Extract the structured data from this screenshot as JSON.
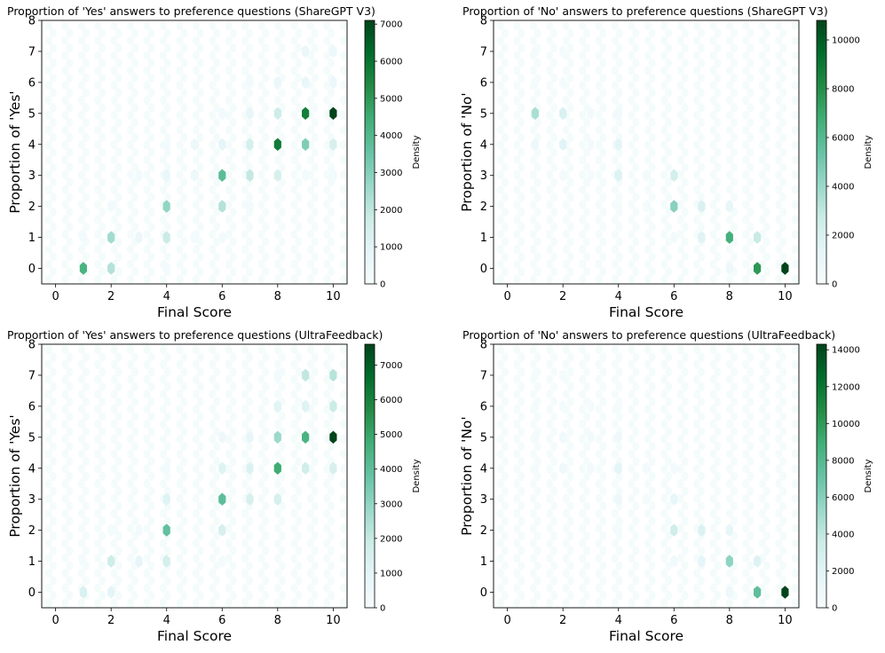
{
  "figure": {
    "description_free": true
  },
  "chart_data": [
    {
      "type": "hexbin",
      "title": "Proportion of 'Yes' answers to preference questions (ShareGPT V3)",
      "xlabel": "Final Score",
      "ylabel": "Proportion of 'Yes'",
      "xlim": [
        -0.5,
        10.5
      ],
      "ylim": [
        -0.5,
        8
      ],
      "xticks": [
        "0",
        "2",
        "4",
        "6",
        "8",
        "10"
      ],
      "yticks": [
        "0",
        "1",
        "2",
        "3",
        "4",
        "5",
        "6",
        "7",
        "8"
      ],
      "colorbar": {
        "label": "Density",
        "max": 7100,
        "ticks": [
          "0",
          "1000",
          "2000",
          "3000",
          "4000",
          "5000",
          "6000",
          "7000"
        ]
      },
      "points": [
        {
          "x": 1,
          "y": 0,
          "v": 4200
        },
        {
          "x": 2,
          "y": 0,
          "v": 2200
        },
        {
          "x": 4,
          "y": 0,
          "v": 300
        },
        {
          "x": 1,
          "y": 1,
          "v": 300
        },
        {
          "x": 2,
          "y": 1,
          "v": 2500
        },
        {
          "x": 3,
          "y": 1,
          "v": 600
        },
        {
          "x": 4,
          "y": 1,
          "v": 1800
        },
        {
          "x": 5,
          "y": 1,
          "v": 300
        },
        {
          "x": 6,
          "y": 1,
          "v": 200
        },
        {
          "x": 2,
          "y": 2,
          "v": 300
        },
        {
          "x": 4,
          "y": 2,
          "v": 2800
        },
        {
          "x": 6,
          "y": 2,
          "v": 2200
        },
        {
          "x": 7,
          "y": 2,
          "v": 300
        },
        {
          "x": 3,
          "y": 3,
          "v": 300
        },
        {
          "x": 4,
          "y": 3,
          "v": 700
        },
        {
          "x": 5,
          "y": 3,
          "v": 500
        },
        {
          "x": 6,
          "y": 3,
          "v": 3800
        },
        {
          "x": 7,
          "y": 3,
          "v": 1900
        },
        {
          "x": 8,
          "y": 3,
          "v": 1400
        },
        {
          "x": 9,
          "y": 3,
          "v": 300
        },
        {
          "x": 10,
          "y": 3,
          "v": 300
        },
        {
          "x": 4,
          "y": 4,
          "v": 300
        },
        {
          "x": 5,
          "y": 4,
          "v": 500
        },
        {
          "x": 6,
          "y": 4,
          "v": 900
        },
        {
          "x": 7,
          "y": 4,
          "v": 1500
        },
        {
          "x": 8,
          "y": 4,
          "v": 5800
        },
        {
          "x": 9,
          "y": 4,
          "v": 3100
        },
        {
          "x": 10,
          "y": 4,
          "v": 1400
        },
        {
          "x": 6,
          "y": 5,
          "v": 300
        },
        {
          "x": 7,
          "y": 5,
          "v": 800
        },
        {
          "x": 8,
          "y": 5,
          "v": 1700
        },
        {
          "x": 9,
          "y": 5,
          "v": 5700
        },
        {
          "x": 10,
          "y": 5,
          "v": 7100
        },
        {
          "x": 7,
          "y": 6,
          "v": 300
        },
        {
          "x": 8,
          "y": 6,
          "v": 600
        },
        {
          "x": 9,
          "y": 6,
          "v": 700
        },
        {
          "x": 10,
          "y": 6,
          "v": 600
        },
        {
          "x": 9,
          "y": 7,
          "v": 600
        },
        {
          "x": 10,
          "y": 7,
          "v": 500
        }
      ]
    },
    {
      "type": "hexbin",
      "title": "Proportion of 'No' answers to preference questions (ShareGPT V3)",
      "xlabel": "Final Score",
      "ylabel": "Proportion of 'No'",
      "xlim": [
        -0.5,
        10.5
      ],
      "ylim": [
        -0.5,
        8
      ],
      "xticks": [
        "0",
        "2",
        "4",
        "6",
        "8",
        "10"
      ],
      "yticks": [
        "0",
        "1",
        "2",
        "3",
        "4",
        "5",
        "6",
        "7",
        "8"
      ],
      "colorbar": {
        "label": "Density",
        "max": 10800,
        "ticks": [
          "0",
          "2000",
          "4000",
          "6000",
          "8000",
          "10000"
        ]
      },
      "points": [
        {
          "x": 1,
          "y": 7,
          "v": 200
        },
        {
          "x": 2,
          "y": 7,
          "v": 200
        },
        {
          "x": 1,
          "y": 6,
          "v": 200
        },
        {
          "x": 2,
          "y": 6,
          "v": 200
        },
        {
          "x": 1,
          "y": 5,
          "v": 3600
        },
        {
          "x": 2,
          "y": 5,
          "v": 2000
        },
        {
          "x": 3,
          "y": 5,
          "v": 300
        },
        {
          "x": 4,
          "y": 5,
          "v": 500
        },
        {
          "x": 1,
          "y": 4,
          "v": 700
        },
        {
          "x": 2,
          "y": 4,
          "v": 1500
        },
        {
          "x": 3,
          "y": 4,
          "v": 300
        },
        {
          "x": 4,
          "y": 4,
          "v": 1400
        },
        {
          "x": 2,
          "y": 3,
          "v": 300
        },
        {
          "x": 3,
          "y": 3,
          "v": 200
        },
        {
          "x": 4,
          "y": 3,
          "v": 1800
        },
        {
          "x": 5,
          "y": 3,
          "v": 300
        },
        {
          "x": 6,
          "y": 3,
          "v": 2300
        },
        {
          "x": 4,
          "y": 2,
          "v": 200
        },
        {
          "x": 5,
          "y": 2,
          "v": 200
        },
        {
          "x": 6,
          "y": 2,
          "v": 4500
        },
        {
          "x": 7,
          "y": 2,
          "v": 1900
        },
        {
          "x": 8,
          "y": 2,
          "v": 1100
        },
        {
          "x": 6,
          "y": 1,
          "v": 300
        },
        {
          "x": 7,
          "y": 1,
          "v": 1600
        },
        {
          "x": 8,
          "y": 1,
          "v": 6600
        },
        {
          "x": 9,
          "y": 1,
          "v": 2800
        },
        {
          "x": 8,
          "y": 0,
          "v": 700
        },
        {
          "x": 9,
          "y": 0,
          "v": 7600
        },
        {
          "x": 10,
          "y": 0,
          "v": 10800
        }
      ]
    },
    {
      "type": "hexbin",
      "title": "Proportion of 'Yes' answers to preference questions (UltraFeedback)",
      "xlabel": "Final Score",
      "ylabel": "Proportion of 'Yes'",
      "xlim": [
        -0.5,
        10.5
      ],
      "ylim": [
        -0.5,
        8
      ],
      "xticks": [
        "0",
        "2",
        "4",
        "6",
        "8",
        "10"
      ],
      "yticks": [
        "0",
        "1",
        "2",
        "3",
        "4",
        "5",
        "6",
        "7",
        "8"
      ],
      "colorbar": {
        "label": "Density",
        "max": 7600,
        "ticks": [
          "0",
          "1000",
          "2000",
          "3000",
          "4000",
          "5000",
          "6000",
          "7000"
        ]
      },
      "points": [
        {
          "x": 1,
          "y": 0,
          "v": 1400
        },
        {
          "x": 2,
          "y": 0,
          "v": 1000
        },
        {
          "x": 1,
          "y": 1,
          "v": 200
        },
        {
          "x": 2,
          "y": 1,
          "v": 1800
        },
        {
          "x": 3,
          "y": 1,
          "v": 900
        },
        {
          "x": 4,
          "y": 1,
          "v": 1600
        },
        {
          "x": 6,
          "y": 1,
          "v": 200
        },
        {
          "x": 2,
          "y": 2,
          "v": 200
        },
        {
          "x": 3,
          "y": 2,
          "v": 300
        },
        {
          "x": 4,
          "y": 2,
          "v": 3900
        },
        {
          "x": 6,
          "y": 2,
          "v": 1500
        },
        {
          "x": 4,
          "y": 3,
          "v": 1200
        },
        {
          "x": 6,
          "y": 3,
          "v": 4000
        },
        {
          "x": 7,
          "y": 3,
          "v": 1500
        },
        {
          "x": 8,
          "y": 3,
          "v": 1500
        },
        {
          "x": 4,
          "y": 4,
          "v": 300
        },
        {
          "x": 6,
          "y": 4,
          "v": 1200
        },
        {
          "x": 7,
          "y": 4,
          "v": 1300
        },
        {
          "x": 8,
          "y": 4,
          "v": 4800
        },
        {
          "x": 9,
          "y": 4,
          "v": 1700
        },
        {
          "x": 10,
          "y": 4,
          "v": 1500
        },
        {
          "x": 6,
          "y": 5,
          "v": 500
        },
        {
          "x": 7,
          "y": 5,
          "v": 800
        },
        {
          "x": 8,
          "y": 5,
          "v": 2800
        },
        {
          "x": 9,
          "y": 5,
          "v": 4500
        },
        {
          "x": 10,
          "y": 5,
          "v": 7600
        },
        {
          "x": 8,
          "y": 6,
          "v": 1100
        },
        {
          "x": 9,
          "y": 6,
          "v": 1200
        },
        {
          "x": 10,
          "y": 6,
          "v": 1900
        },
        {
          "x": 8,
          "y": 7,
          "v": 300
        },
        {
          "x": 9,
          "y": 7,
          "v": 2100
        },
        {
          "x": 10,
          "y": 7,
          "v": 2300
        }
      ]
    },
    {
      "type": "hexbin",
      "title": "Proportion of 'No' answers to preference questions (UltraFeedback)",
      "xlabel": "Final Score",
      "ylabel": "Proportion of 'No'",
      "xlim": [
        -0.5,
        10.5
      ],
      "ylim": [
        -0.5,
        8
      ],
      "xticks": [
        "0",
        "2",
        "4",
        "6",
        "8",
        "10"
      ],
      "yticks": [
        "0",
        "1",
        "2",
        "3",
        "4",
        "5",
        "6",
        "7",
        "8"
      ],
      "colorbar": {
        "label": "Density",
        "max": 14300,
        "ticks": [
          "0",
          "2000",
          "4000",
          "6000",
          "8000",
          "10000",
          "12000",
          "14000"
        ]
      },
      "points": [
        {
          "x": 1,
          "y": 7,
          "v": 300
        },
        {
          "x": 2,
          "y": 7,
          "v": 300
        },
        {
          "x": 1,
          "y": 6,
          "v": 300
        },
        {
          "x": 2,
          "y": 6,
          "v": 300
        },
        {
          "x": 3,
          "y": 6,
          "v": 200
        },
        {
          "x": 4,
          "y": 6,
          "v": 200
        },
        {
          "x": 1,
          "y": 5,
          "v": 500
        },
        {
          "x": 2,
          "y": 5,
          "v": 700
        },
        {
          "x": 3,
          "y": 5,
          "v": 500
        },
        {
          "x": 4,
          "y": 5,
          "v": 800
        },
        {
          "x": 1,
          "y": 4,
          "v": 300
        },
        {
          "x": 2,
          "y": 4,
          "v": 800
        },
        {
          "x": 3,
          "y": 4,
          "v": 500
        },
        {
          "x": 4,
          "y": 4,
          "v": 1700
        },
        {
          "x": 5,
          "y": 4,
          "v": 500
        },
        {
          "x": 6,
          "y": 4,
          "v": 400
        },
        {
          "x": 4,
          "y": 3,
          "v": 1100
        },
        {
          "x": 5,
          "y": 3,
          "v": 300
        },
        {
          "x": 6,
          "y": 3,
          "v": 1600
        },
        {
          "x": 4,
          "y": 2,
          "v": 300
        },
        {
          "x": 6,
          "y": 2,
          "v": 3200
        },
        {
          "x": 7,
          "y": 2,
          "v": 2400
        },
        {
          "x": 8,
          "y": 2,
          "v": 1600
        },
        {
          "x": 6,
          "y": 1,
          "v": 700
        },
        {
          "x": 7,
          "y": 1,
          "v": 1800
        },
        {
          "x": 8,
          "y": 1,
          "v": 5700
        },
        {
          "x": 9,
          "y": 1,
          "v": 2300
        },
        {
          "x": 8,
          "y": 0,
          "v": 900
        },
        {
          "x": 9,
          "y": 0,
          "v": 7500
        },
        {
          "x": 10,
          "y": 0,
          "v": 14300
        }
      ]
    }
  ]
}
